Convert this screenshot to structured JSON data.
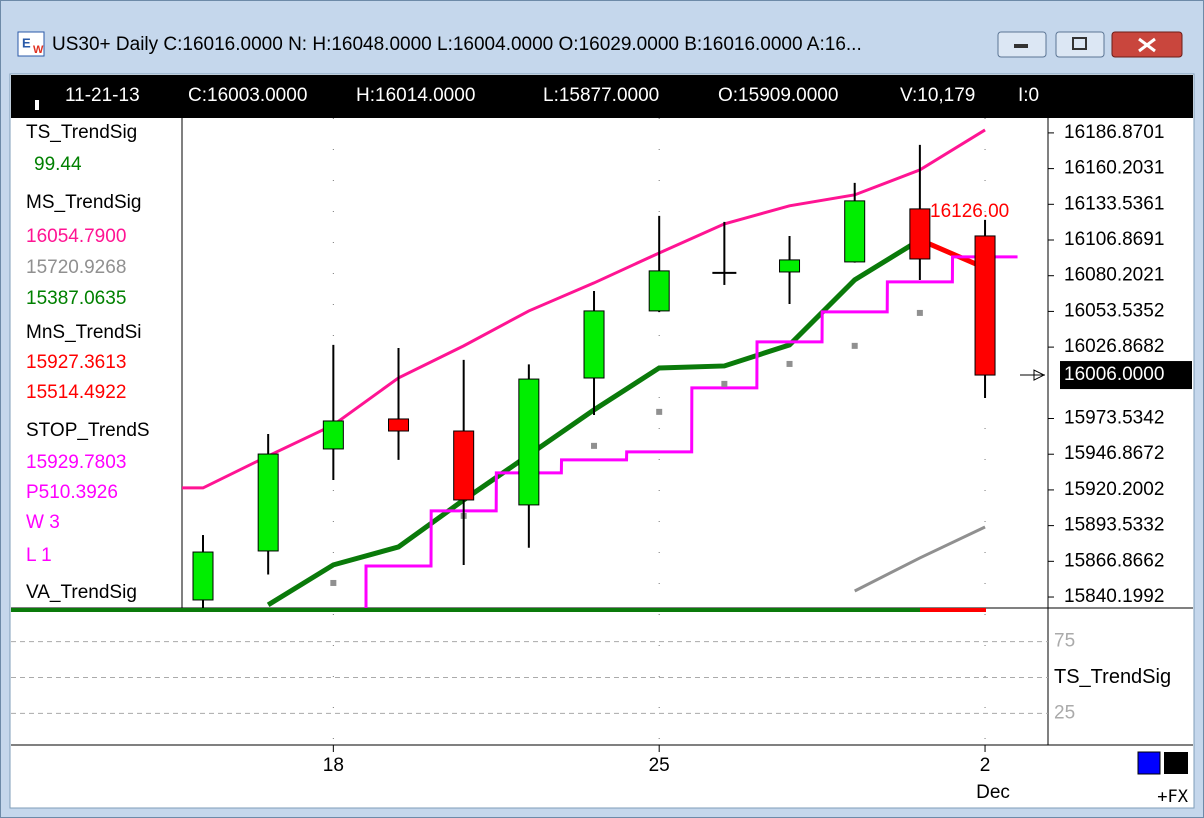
{
  "window": {
    "title": "US30+ Daily C:16016.0000 N: H:16048.0000 L:16004.0000 O:16029.0000 B:16016.0000 A:16..."
  },
  "info_bar": [
    "11-21-13",
    "C:16003.0000",
    "H:16014.0000",
    "L:15877.0000",
    "O:15909.0000",
    "V:10,179",
    "I:0"
  ],
  "indicators": [
    {
      "text": "TS_TrendSig",
      "color": "#000000"
    },
    {
      "text": "99.44",
      "color": "#008000"
    },
    {
      "text": "MS_TrendSig",
      "color": "#000000"
    },
    {
      "text": "16054.7900",
      "color": "#ff1493"
    },
    {
      "text": "15720.9268",
      "color": "#909090"
    },
    {
      "text": "15387.0635",
      "color": "#008000"
    },
    {
      "text": "MnS_TrendSi",
      "color": "#000000"
    },
    {
      "text": "15927.3613",
      "color": "#ff0000"
    },
    {
      "text": "15514.4922",
      "color": "#ff0000"
    },
    {
      "text": "STOP_TrendS",
      "color": "#000000"
    },
    {
      "text": "15929.7803",
      "color": "#ff00ff"
    },
    {
      "text": "P510.3926",
      "color": "#ff00ff"
    },
    {
      "text": "W 3",
      "color": "#ff00ff"
    },
    {
      "text": "L  1",
      "color": "#ff00ff"
    },
    {
      "text": "VA_TrendSig",
      "color": "#000000"
    }
  ],
  "chart": {
    "type": "candlestick",
    "categories": [
      null,
      null,
      "18",
      null,
      null,
      null,
      null,
      "25",
      null,
      null,
      null,
      null,
      "2"
    ],
    "month": "Dec",
    "open": [
      15838,
      15874.6,
      15950.8,
      15973.2,
      15964.2,
      15909,
      16003.8,
      16053.9,
      16082.3,
      16083,
      16090.5,
      16130.1,
      16109.9
    ],
    "high": [
      15886.5,
      15962,
      16028.5,
      16026.2,
      16017.3,
      16014,
      16068.8,
      16124.9,
      16120.4,
      16109.9,
      16149.5,
      16177.9,
      16121.9
    ],
    "low": [
      15830,
      15857,
      15927.6,
      15942.6,
      15864.1,
      15877,
      15976.2,
      16053,
      16073.3,
      16059.1,
      16090,
      16077,
      15988.9
    ],
    "close": [
      15873.8,
      15947,
      15971.7,
      15964.2,
      15912.7,
      16003,
      16053.9,
      16083.8,
      16082.3,
      16092,
      16136.1,
      16092.7,
      16006
    ],
    "up_color": "#00ee00",
    "down_color": "#ff0000",
    "lines": [
      {
        "color": "#ff1493",
        "values": [
          15921.7,
          15945.6,
          15968.7,
          16003.9,
          16027.8,
          16053.9,
          16074.8,
          16097.2,
          16118.9,
          16132.4,
          16140.6,
          16159.2,
          16189.1
        ]
      },
      {
        "color": "#0a7a0a",
        "values": [
          null,
          15834.3,
          15864.2,
          15877.6,
          15912.7,
          15946.3,
          15980,
          16011.3,
          16012.8,
          16028.5,
          16077.1,
          16107,
          null
        ]
      },
      {
        "color": "#ff0000",
        "values": [
          null,
          null,
          null,
          null,
          null,
          null,
          null,
          null,
          null,
          null,
          null,
          16107,
          16086
        ]
      },
      {
        "color": "#909090",
        "values": [
          null,
          null,
          null,
          null,
          null,
          null,
          null,
          null,
          null,
          null,
          15844.7,
          15869.4,
          15892.5
        ]
      }
    ],
    "stop": {
      "color": "#ff00ff",
      "values": [
        null,
        null,
        null,
        15863.4,
        15904.5,
        15932.9,
        15942.6,
        15948.6,
        15996.4,
        16030.8,
        16053.2,
        16075.6,
        16094.3
      ]
    },
    "dots": {
      "color": "#909090",
      "values": [
        null,
        null,
        15850.7,
        null,
        15900.8,
        15932.1,
        15953.1,
        15978.5,
        15999.4,
        16014.3,
        16027.8,
        16052.4,
        16075.6
      ]
    },
    "annotation": {
      "text": "16126.00",
      "color": "#ff0000"
    },
    "last_price": {
      "value": 16006,
      "label": "16006.0000"
    },
    "ylim": [
      15832,
      16198
    ],
    "yticks": [
      16186.8701,
      16160.2031,
      16133.5361,
      16106.8691,
      16080.2021,
      16053.5352,
      16026.8682,
      15973.5342,
      15946.8672,
      15920.2002,
      15893.5332,
      15866.8662,
      15840.1992
    ]
  },
  "subpanel": {
    "ylim": [
      3,
      97
    ],
    "yticks": [
      75,
      {
        "value": 50,
        "label": "TS_TrendSig"
      },
      25
    ]
  },
  "corner": "+FX"
}
